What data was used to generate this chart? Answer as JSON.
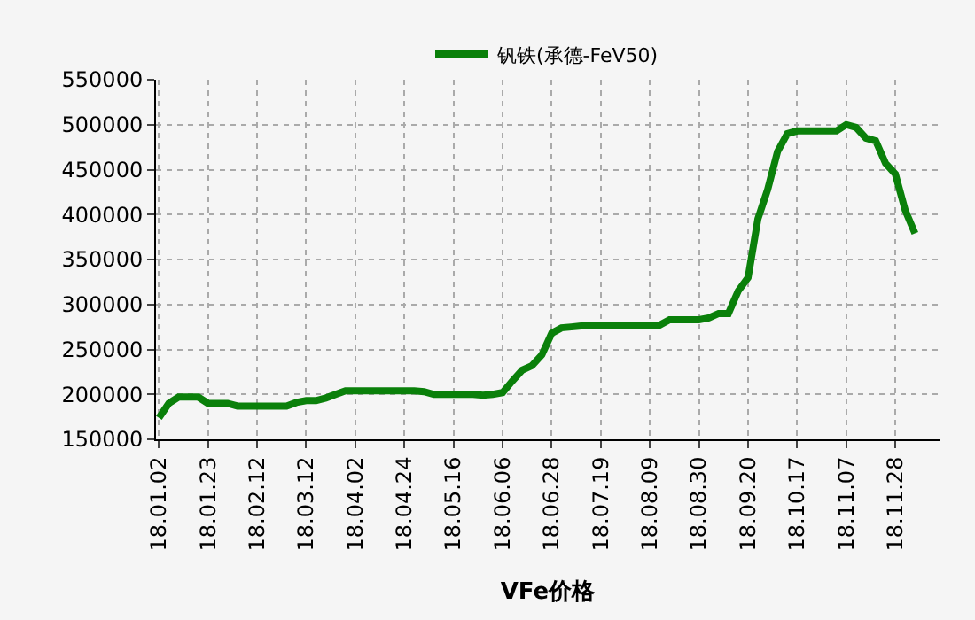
{
  "chart_data": {
    "type": "line",
    "xlabel": "VFe价格",
    "categories": [
      "18.01.02",
      null,
      null,
      null,
      null,
      "18.01.23",
      null,
      null,
      null,
      null,
      "18.02.12",
      null,
      null,
      null,
      null,
      "18.03.12",
      null,
      null,
      null,
      null,
      "18.04.02",
      null,
      null,
      null,
      null,
      "18.04.24",
      null,
      null,
      null,
      null,
      "18.05.16",
      null,
      null,
      null,
      null,
      "18.06.06",
      null,
      null,
      null,
      null,
      "18.06.28",
      null,
      null,
      null,
      null,
      "18.07.19",
      null,
      null,
      null,
      null,
      "18.08.09",
      null,
      null,
      null,
      null,
      "18.08.30",
      null,
      null,
      null,
      null,
      "18.09.20",
      null,
      null,
      null,
      null,
      "18.10.17",
      null,
      null,
      null,
      null,
      "18.11.07",
      null,
      null,
      null,
      null,
      "18.11.28",
      null,
      null
    ],
    "series": [
      {
        "name": "钒铁(承德-FeV50)",
        "color": "#0a800a",
        "values": [
          174000,
          190000,
          197000,
          197000,
          197000,
          190000,
          190000,
          190000,
          187000,
          187000,
          187000,
          187000,
          187000,
          187000,
          191000,
          193000,
          193000,
          196000,
          200000,
          204000,
          204000,
          204000,
          204000,
          204000,
          204000,
          204000,
          204000,
          203000,
          200000,
          200000,
          200000,
          200000,
          200000,
          199000,
          200000,
          202000,
          215000,
          227000,
          232000,
          244000,
          268000,
          274000,
          275000,
          276000,
          277000,
          277000,
          277000,
          277000,
          277000,
          277000,
          277000,
          277000,
          283000,
          283000,
          283000,
          283000,
          285000,
          290000,
          290000,
          315000,
          330000,
          395000,
          428000,
          470000,
          490000,
          493000,
          493000,
          493000,
          493000,
          493000,
          500000,
          497000,
          485000,
          482000,
          457000,
          445000,
          405000,
          379000
        ]
      }
    ],
    "ylim": [
      150000,
      550000
    ],
    "yticks": [
      150000,
      200000,
      250000,
      300000,
      350000,
      400000,
      450000,
      500000,
      550000
    ],
    "grid": true,
    "legend": "top",
    "marker": "none",
    "line_style": "solid"
  }
}
